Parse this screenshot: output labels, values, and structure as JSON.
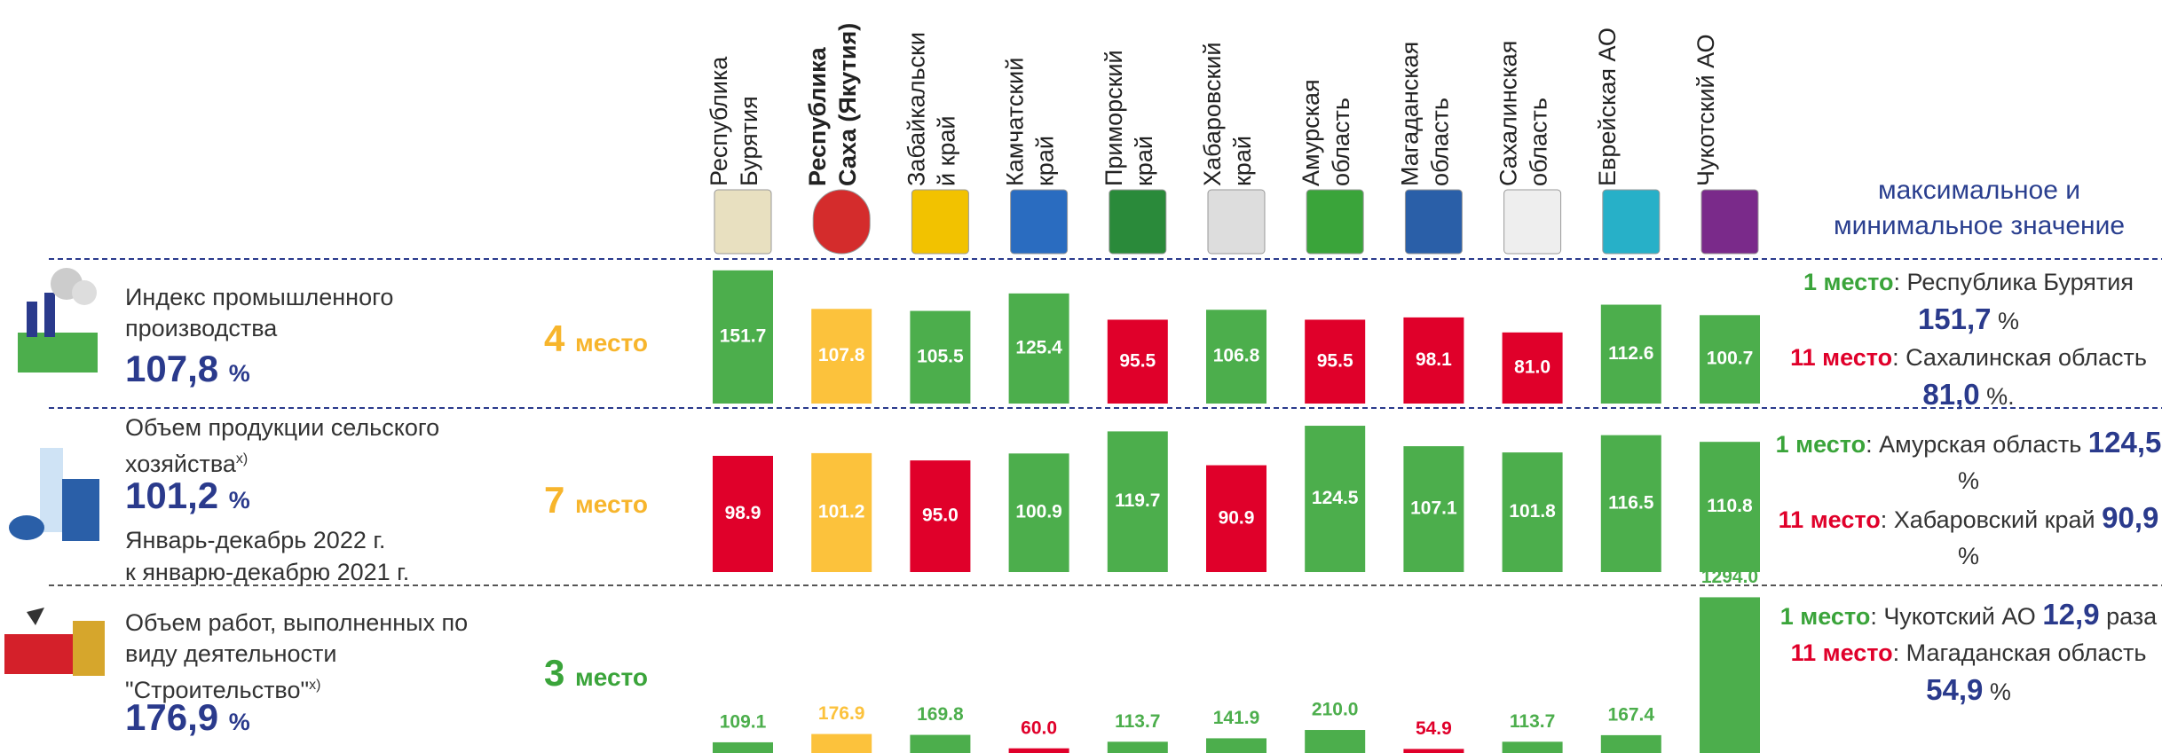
{
  "header": {
    "extremes_title": "максимальное и минимальное значение"
  },
  "regions": [
    {
      "lines": [
        "Республика",
        "Бурятия"
      ]
    },
    {
      "lines": [
        "Республика",
        "Саха (Якутия)"
      ]
    },
    {
      "lines": [
        "Забайкальски",
        "й край"
      ]
    },
    {
      "lines": [
        "Камчатский",
        "край"
      ]
    },
    {
      "lines": [
        "Приморский",
        "край"
      ]
    },
    {
      "lines": [
        "Хабаровский",
        "край"
      ]
    },
    {
      "lines": [
        "Амурская",
        "область"
      ]
    },
    {
      "lines": [
        "Магаданская",
        "область"
      ]
    },
    {
      "lines": [
        "Сахалинская",
        "область"
      ]
    },
    {
      "lines": [
        "Еврейская АО"
      ]
    },
    {
      "lines": [
        "Чукотский АО"
      ]
    }
  ],
  "rows": [
    {
      "label": "Индекс промышленного производства",
      "value": 107.8,
      "value_label": "107,8",
      "unit": "%",
      "place_number": "4",
      "place_word": "место",
      "place_color": "#f7b52c",
      "values": [
        151.7,
        107.8,
        105.5,
        125.4,
        95.5,
        106.8,
        95.5,
        98.1,
        81.0,
        112.6,
        100.7
      ],
      "value_labels": [
        "151.7",
        "107.8",
        "105.5",
        "125.4",
        "95.5",
        "106.8",
        "95.5",
        "98.1",
        "81.0",
        "112.6",
        "100.7"
      ],
      "colors": [
        "#4cae4c",
        "#fcc23c",
        "#4cae4c",
        "#4cae4c",
        "#e0002a",
        "#4cae4c",
        "#e0002a",
        "#e0002a",
        "#e0002a",
        "#4cae4c",
        "#4cae4c"
      ],
      "summary": {
        "top_place": "1 место",
        "top_text": ": Республика Бурятия",
        "top_value": "151,7",
        "top_unit": "%",
        "bottom_place": "11 место",
        "bottom_text": ": Сахалинская область",
        "bottom_value": "81,0",
        "bottom_unit": "%."
      }
    },
    {
      "label": "Объем продукции сельского хозяйства",
      "label_sup": "х)",
      "value": 101.2,
      "value_label": "101,2",
      "unit": "%",
      "note": [
        "Январь-декабрь 2022 г.",
        "к январю-декабрю 2021 г."
      ],
      "place_number": "7",
      "place_word": "место",
      "place_color": "#f7b52c",
      "values": [
        98.9,
        101.2,
        95.0,
        100.9,
        119.7,
        90.9,
        124.5,
        107.1,
        101.8,
        116.5,
        110.8
      ],
      "value_labels": [
        "98.9",
        "101.2",
        "95.0",
        "100.9",
        "119.7",
        "90.9",
        "124.5",
        "107.1",
        "101.8",
        "116.5",
        "110.8"
      ],
      "colors": [
        "#e0002a",
        "#fcc23c",
        "#e0002a",
        "#4cae4c",
        "#4cae4c",
        "#e0002a",
        "#4cae4c",
        "#4cae4c",
        "#4cae4c",
        "#4cae4c",
        "#4cae4c"
      ],
      "summary": {
        "top_place": "1 место",
        "top_text": ": Амурская область",
        "top_value": "124,5",
        "top_unit": "%",
        "bottom_place": "11 место",
        "bottom_text": ": Хабаровский край",
        "bottom_value": "90,9",
        "bottom_unit": "%"
      }
    },
    {
      "label": "Объем работ, выполненных по виду деятельности \"Строительство\"",
      "label_sup": "х)",
      "value": 176.9,
      "value_label": "176,9",
      "unit": "%",
      "place_number": "3",
      "place_word": "место",
      "place_color": "#3aa43a",
      "values": [
        109.1,
        176.9,
        169.8,
        60.0,
        113.7,
        141.9,
        210.0,
        54.9,
        113.7,
        167.4,
        1294.0
      ],
      "value_labels": [
        "109.1",
        "176.9",
        "169.8",
        "60.0",
        "113.7",
        "141.9",
        "210.0",
        "54.9",
        "113.7",
        "167.4",
        "1294.0"
      ],
      "colors": [
        "#4cae4c",
        "#fcc23c",
        "#4cae4c",
        "#e0002a",
        "#4cae4c",
        "#4cae4c",
        "#4cae4c",
        "#e0002a",
        "#4cae4c",
        "#4cae4c",
        "#4cae4c"
      ],
      "summary": {
        "top_place": "1 место",
        "top_text": ": Чукотский АО",
        "top_value": "12,9",
        "top_unit": "раза",
        "bottom_place": "11 место",
        "bottom_text": ": Магаданская область",
        "bottom_value": "54,9",
        "bottom_unit": "%"
      }
    }
  ]
}
